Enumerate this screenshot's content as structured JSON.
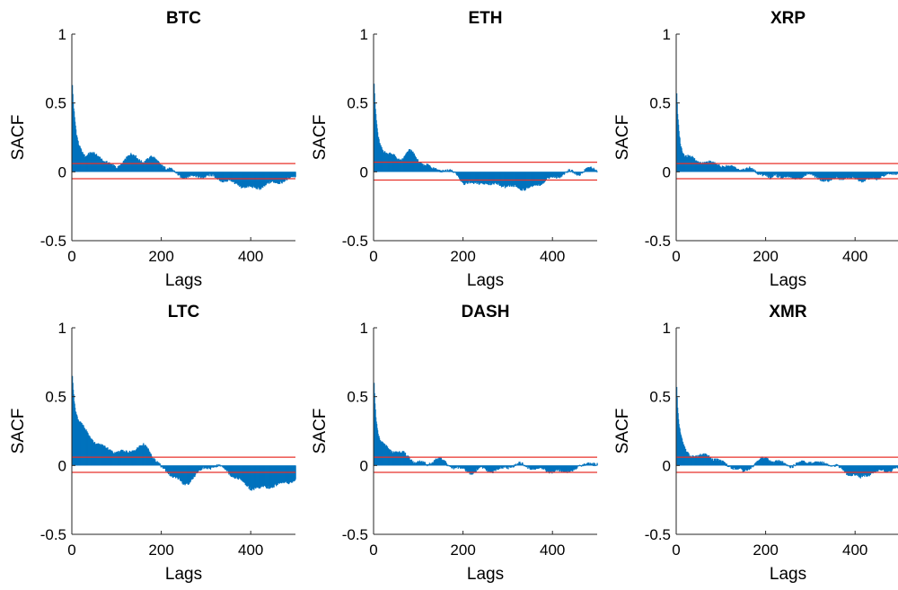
{
  "figure": {
    "ylabel": "SACF",
    "xlabel": "Lags",
    "xlim": [
      0,
      500
    ],
    "ylim": [
      -0.5,
      1
    ],
    "xticks": [
      0,
      200,
      400
    ],
    "yticks": [
      -0.5,
      0,
      0.5,
      1
    ],
    "ytick_labels": [
      "-0.5",
      "0",
      "0.5",
      "1"
    ],
    "colors": {
      "bar": "#0072BD",
      "bound": "#e8312a",
      "axis": "#262626"
    }
  },
  "chart_data": [
    {
      "type": "bar",
      "title": "BTC",
      "xlabel": "Lags",
      "ylabel": "SACF",
      "xlim": [
        0,
        500
      ],
      "ylim": [
        -0.5,
        1
      ],
      "bounds": [
        0.06,
        -0.05
      ],
      "acf_knots": [
        [
          1,
          0.63
        ],
        [
          3,
          0.5
        ],
        [
          6,
          0.38
        ],
        [
          10,
          0.27
        ],
        [
          15,
          0.2
        ],
        [
          20,
          0.17
        ],
        [
          25,
          0.14
        ],
        [
          30,
          0.12
        ],
        [
          40,
          0.13
        ],
        [
          50,
          0.12
        ],
        [
          60,
          0.11
        ],
        [
          70,
          0.09
        ],
        [
          80,
          0.07
        ],
        [
          90,
          0.04
        ],
        [
          100,
          0.02
        ],
        [
          110,
          0.06
        ],
        [
          120,
          0.1
        ],
        [
          130,
          0.12
        ],
        [
          140,
          0.11
        ],
        [
          150,
          0.09
        ],
        [
          160,
          0.08
        ],
        [
          170,
          0.09
        ],
        [
          180,
          0.1
        ],
        [
          190,
          0.08
        ],
        [
          200,
          0.06
        ],
        [
          210,
          0.03
        ],
        [
          220,
          0.01
        ],
        [
          240,
          -0.02
        ],
        [
          260,
          -0.04
        ],
        [
          280,
          -0.03
        ],
        [
          300,
          -0.03
        ],
        [
          320,
          -0.04
        ],
        [
          340,
          -0.06
        ],
        [
          360,
          -0.08
        ],
        [
          380,
          -0.1
        ],
        [
          400,
          -0.12
        ],
        [
          420,
          -0.11
        ],
        [
          440,
          -0.09
        ],
        [
          460,
          -0.07
        ],
        [
          480,
          -0.06
        ],
        [
          500,
          -0.03
        ]
      ]
    },
    {
      "type": "bar",
      "title": "ETH",
      "xlabel": "Lags",
      "ylabel": "SACF",
      "xlim": [
        0,
        500
      ],
      "ylim": [
        -0.5,
        1
      ],
      "bounds": [
        0.07,
        -0.06
      ],
      "acf_knots": [
        [
          1,
          0.64
        ],
        [
          3,
          0.5
        ],
        [
          6,
          0.37
        ],
        [
          10,
          0.26
        ],
        [
          15,
          0.2
        ],
        [
          20,
          0.17
        ],
        [
          30,
          0.13
        ],
        [
          40,
          0.12
        ],
        [
          50,
          0.1
        ],
        [
          60,
          0.09
        ],
        [
          70,
          0.12
        ],
        [
          80,
          0.15
        ],
        [
          90,
          0.12
        ],
        [
          100,
          0.08
        ],
        [
          110,
          0.06
        ],
        [
          120,
          0.05
        ],
        [
          130,
          0.02
        ],
        [
          150,
          0.02
        ],
        [
          170,
          0.0
        ],
        [
          190,
          -0.02
        ],
        [
          200,
          -0.08
        ],
        [
          220,
          -0.09
        ],
        [
          240,
          -0.07
        ],
        [
          260,
          -0.1
        ],
        [
          280,
          -0.08
        ],
        [
          300,
          -0.12
        ],
        [
          320,
          -0.1
        ],
        [
          340,
          -0.13
        ],
        [
          360,
          -0.1
        ],
        [
          380,
          -0.07
        ],
        [
          400,
          -0.04
        ],
        [
          420,
          -0.02
        ],
        [
          440,
          0.0
        ],
        [
          460,
          -0.01
        ],
        [
          480,
          0.02
        ],
        [
          500,
          0.02
        ]
      ]
    },
    {
      "type": "bar",
      "title": "XRP",
      "xlabel": "Lags",
      "ylabel": "SACF",
      "xlim": [
        0,
        500
      ],
      "ylim": [
        -0.5,
        1
      ],
      "bounds": [
        0.06,
        -0.05
      ],
      "acf_knots": [
        [
          1,
          0.57
        ],
        [
          3,
          0.42
        ],
        [
          6,
          0.3
        ],
        [
          10,
          0.2
        ],
        [
          15,
          0.15
        ],
        [
          20,
          0.12
        ],
        [
          30,
          0.1
        ],
        [
          40,
          0.09
        ],
        [
          50,
          0.08
        ],
        [
          60,
          0.07
        ],
        [
          80,
          0.06
        ],
        [
          100,
          0.05
        ],
        [
          120,
          0.03
        ],
        [
          140,
          0.02
        ],
        [
          160,
          0.02
        ],
        [
          180,
          0.0
        ],
        [
          200,
          -0.02
        ],
        [
          210,
          -0.06
        ],
        [
          220,
          -0.02
        ],
        [
          240,
          -0.03
        ],
        [
          260,
          -0.05
        ],
        [
          280,
          -0.03
        ],
        [
          300,
          -0.02
        ],
        [
          320,
          -0.04
        ],
        [
          340,
          -0.08
        ],
        [
          360,
          -0.03
        ],
        [
          380,
          -0.06
        ],
        [
          400,
          -0.04
        ],
        [
          420,
          -0.07
        ],
        [
          440,
          -0.05
        ],
        [
          460,
          -0.03
        ],
        [
          480,
          -0.02
        ],
        [
          500,
          0.01
        ]
      ]
    },
    {
      "type": "bar",
      "title": "LTC",
      "xlabel": "Lags",
      "ylabel": "SACF",
      "xlim": [
        0,
        500
      ],
      "ylim": [
        -0.5,
        1
      ],
      "bounds": [
        0.06,
        -0.05
      ],
      "acf_knots": [
        [
          1,
          0.65
        ],
        [
          3,
          0.55
        ],
        [
          6,
          0.45
        ],
        [
          10,
          0.38
        ],
        [
          15,
          0.33
        ],
        [
          20,
          0.3
        ],
        [
          30,
          0.25
        ],
        [
          40,
          0.21
        ],
        [
          50,
          0.18
        ],
        [
          60,
          0.15
        ],
        [
          70,
          0.13
        ],
        [
          80,
          0.12
        ],
        [
          100,
          0.1
        ],
        [
          120,
          0.09
        ],
        [
          140,
          0.12
        ],
        [
          160,
          0.14
        ],
        [
          170,
          0.12
        ],
        [
          180,
          0.07
        ],
        [
          190,
          0.03
        ],
        [
          200,
          -0.02
        ],
        [
          210,
          -0.04
        ],
        [
          220,
          -0.06
        ],
        [
          240,
          -0.1
        ],
        [
          250,
          -0.15
        ],
        [
          260,
          -0.13
        ],
        [
          270,
          -0.08
        ],
        [
          280,
          -0.05
        ],
        [
          300,
          -0.02
        ],
        [
          320,
          0.0
        ],
        [
          340,
          -0.02
        ],
        [
          360,
          -0.07
        ],
        [
          380,
          -0.12
        ],
        [
          400,
          -0.16
        ],
        [
          420,
          -0.17
        ],
        [
          440,
          -0.15
        ],
        [
          460,
          -0.14
        ],
        [
          480,
          -0.12
        ],
        [
          500,
          -0.1
        ]
      ]
    },
    {
      "type": "bar",
      "title": "DASH",
      "xlabel": "Lags",
      "ylabel": "SACF",
      "xlim": [
        0,
        500
      ],
      "ylim": [
        -0.5,
        1
      ],
      "bounds": [
        0.06,
        -0.05
      ],
      "acf_knots": [
        [
          1,
          0.6
        ],
        [
          3,
          0.45
        ],
        [
          6,
          0.32
        ],
        [
          10,
          0.22
        ],
        [
          15,
          0.17
        ],
        [
          20,
          0.15
        ],
        [
          30,
          0.13
        ],
        [
          40,
          0.11
        ],
        [
          50,
          0.1
        ],
        [
          60,
          0.09
        ],
        [
          70,
          0.08
        ],
        [
          80,
          0.06
        ],
        [
          90,
          0.03
        ],
        [
          100,
          0.02
        ],
        [
          120,
          0.01
        ],
        [
          140,
          0.05
        ],
        [
          160,
          0.02
        ],
        [
          180,
          -0.01
        ],
        [
          200,
          -0.03
        ],
        [
          220,
          -0.05
        ],
        [
          240,
          -0.02
        ],
        [
          260,
          -0.04
        ],
        [
          280,
          -0.03
        ],
        [
          300,
          -0.01
        ],
        [
          320,
          0.01
        ],
        [
          340,
          0.0
        ],
        [
          360,
          -0.02
        ],
        [
          380,
          -0.03
        ],
        [
          400,
          -0.04
        ],
        [
          420,
          -0.05
        ],
        [
          440,
          -0.03
        ],
        [
          460,
          -0.02
        ],
        [
          480,
          0.03
        ],
        [
          500,
          0.0
        ]
      ]
    },
    {
      "type": "bar",
      "title": "XMR",
      "xlabel": "Lags",
      "ylabel": "SACF",
      "xlim": [
        0,
        500
      ],
      "ylim": [
        -0.5,
        1
      ],
      "bounds": [
        0.06,
        -0.05
      ],
      "acf_knots": [
        [
          1,
          0.57
        ],
        [
          3,
          0.42
        ],
        [
          6,
          0.3
        ],
        [
          10,
          0.21
        ],
        [
          15,
          0.15
        ],
        [
          20,
          0.11
        ],
        [
          30,
          0.08
        ],
        [
          40,
          0.07
        ],
        [
          50,
          0.06
        ],
        [
          60,
          0.07
        ],
        [
          70,
          0.08
        ],
        [
          80,
          0.06
        ],
        [
          90,
          0.04
        ],
        [
          100,
          0.02
        ],
        [
          120,
          0.0
        ],
        [
          140,
          -0.03
        ],
        [
          150,
          -0.05
        ],
        [
          160,
          -0.02
        ],
        [
          180,
          0.02
        ],
        [
          200,
          0.06
        ],
        [
          220,
          0.03
        ],
        [
          240,
          0.01
        ],
        [
          260,
          0.0
        ],
        [
          280,
          0.02
        ],
        [
          300,
          0.03
        ],
        [
          320,
          0.01
        ],
        [
          340,
          0.02
        ],
        [
          360,
          -0.01
        ],
        [
          380,
          -0.05
        ],
        [
          400,
          -0.07
        ],
        [
          410,
          -0.1
        ],
        [
          420,
          -0.07
        ],
        [
          440,
          -0.05
        ],
        [
          460,
          -0.04
        ],
        [
          480,
          -0.03
        ],
        [
          500,
          -0.02
        ]
      ]
    }
  ]
}
